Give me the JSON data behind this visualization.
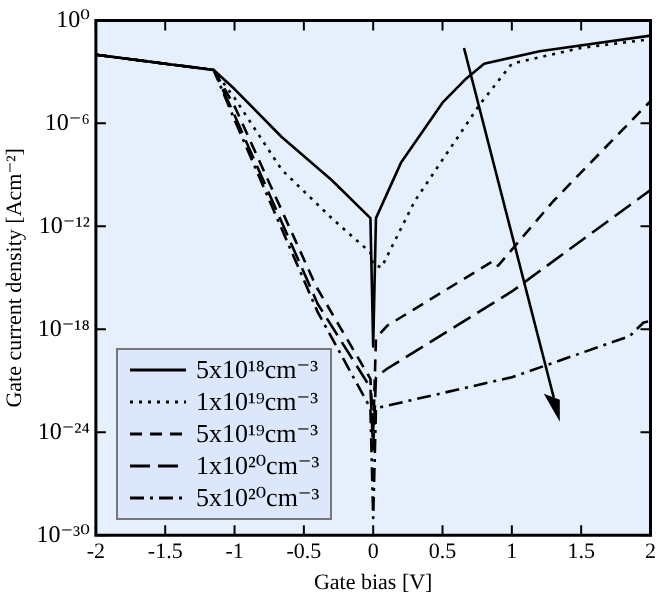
{
  "chart_data": {
    "type": "line",
    "xlabel": "Gate bias [V]",
    "ylabel": "Gate current density [Acm⁻²]",
    "xlim": [
      -2,
      2
    ],
    "xticks": [
      -2,
      -1.5,
      -1,
      -0.5,
      0,
      0.5,
      1,
      1.5,
      2
    ],
    "ylim": [
      1e-30,
      1
    ],
    "yticks": [
      {
        "value": 1e-30,
        "label": "10⁻³⁰"
      },
      {
        "value": 1e-24,
        "label": "10⁻²⁴"
      },
      {
        "value": 1e-18,
        "label": "10⁻¹⁸"
      },
      {
        "value": 1e-12,
        "label": "10⁻¹²"
      },
      {
        "value": 1e-06,
        "label": "10⁻⁶"
      },
      {
        "value": 1,
        "label": "10⁰"
      }
    ],
    "log": "y",
    "grid": false,
    "legend": "bottom left",
    "marker": "none",
    "series": [
      {
        "name": "5x10¹⁸cm⁻³",
        "color": "#000000",
        "line_style": "solid",
        "x": [
          -2,
          -1.5,
          -1.15,
          -1,
          -0.66,
          -0.3,
          -0.02,
          0,
          0.02,
          0.2,
          0.5,
          0.67,
          0.8,
          1.2,
          2
        ],
        "values": [
          0.01,
          0.003,
          0.0013,
          0.0001,
          1.6e-07,
          5e-10,
          3e-12,
          1e-19,
          3e-12,
          5e-09,
          1.6e-05,
          0.0004,
          0.003,
          0.016,
          0.13
        ]
      },
      {
        "name": "1x10¹⁹cm⁻³",
        "color": "#000000",
        "line_style": "dotted",
        "x": [
          -2,
          -1.5,
          -1.15,
          -1,
          -0.66,
          -0.3,
          -0.02,
          0,
          0.06,
          0.3,
          0.77,
          1,
          1.5,
          2
        ],
        "values": [
          0.01,
          0.003,
          0.0013,
          3e-05,
          2e-09,
          3e-12,
          3e-14,
          6e-15,
          4e-15,
          3e-11,
          1.3e-05,
          0.003,
          0.025,
          0.08
        ]
      },
      {
        "name": "5x10¹⁹cm⁻³",
        "color": "#000000",
        "line_style": "dashed",
        "x": [
          -2,
          -1.5,
          -1.15,
          -1,
          -0.41,
          -0.02,
          0,
          0.02,
          0.1,
          0.87,
          0.9,
          1.3,
          2
        ],
        "values": [
          0.01,
          0.003,
          0.0013,
          1e-05,
          3e-16,
          1.3e-21,
          1e-24,
          3e-19,
          1.6e-18,
          1e-14,
          5e-15,
          3e-11,
          2e-05
        ]
      },
      {
        "name": "1x10²⁰cm⁻³",
        "color": "#000000",
        "line_style": "longdash",
        "x": [
          -2,
          -1.5,
          -1.15,
          -1,
          -0.4,
          -0.02,
          0,
          0.02,
          0.1,
          1,
          2
        ],
        "values": [
          0.01,
          0.003,
          0.0013,
          3e-06,
          3e-17,
          4e-22,
          1e-25,
          1.6e-21,
          5e-21,
          1.6e-16,
          1.3e-10
        ]
      },
      {
        "name": "5x10²⁰cm⁻³",
        "color": "#000000",
        "line_style": "dashdot",
        "x": [
          -2,
          -1.5,
          -1.15,
          -1,
          -0.4,
          -0.02,
          0,
          0.02,
          1,
          1.85,
          1.95,
          2
        ],
        "values": [
          0.01,
          0.003,
          0.0013,
          1.6e-06,
          1e-17,
          2.5e-23,
          1e-29,
          2.5e-23,
          1.6e-21,
          4e-19,
          2.5e-18,
          3e-18
        ]
      }
    ]
  }
}
